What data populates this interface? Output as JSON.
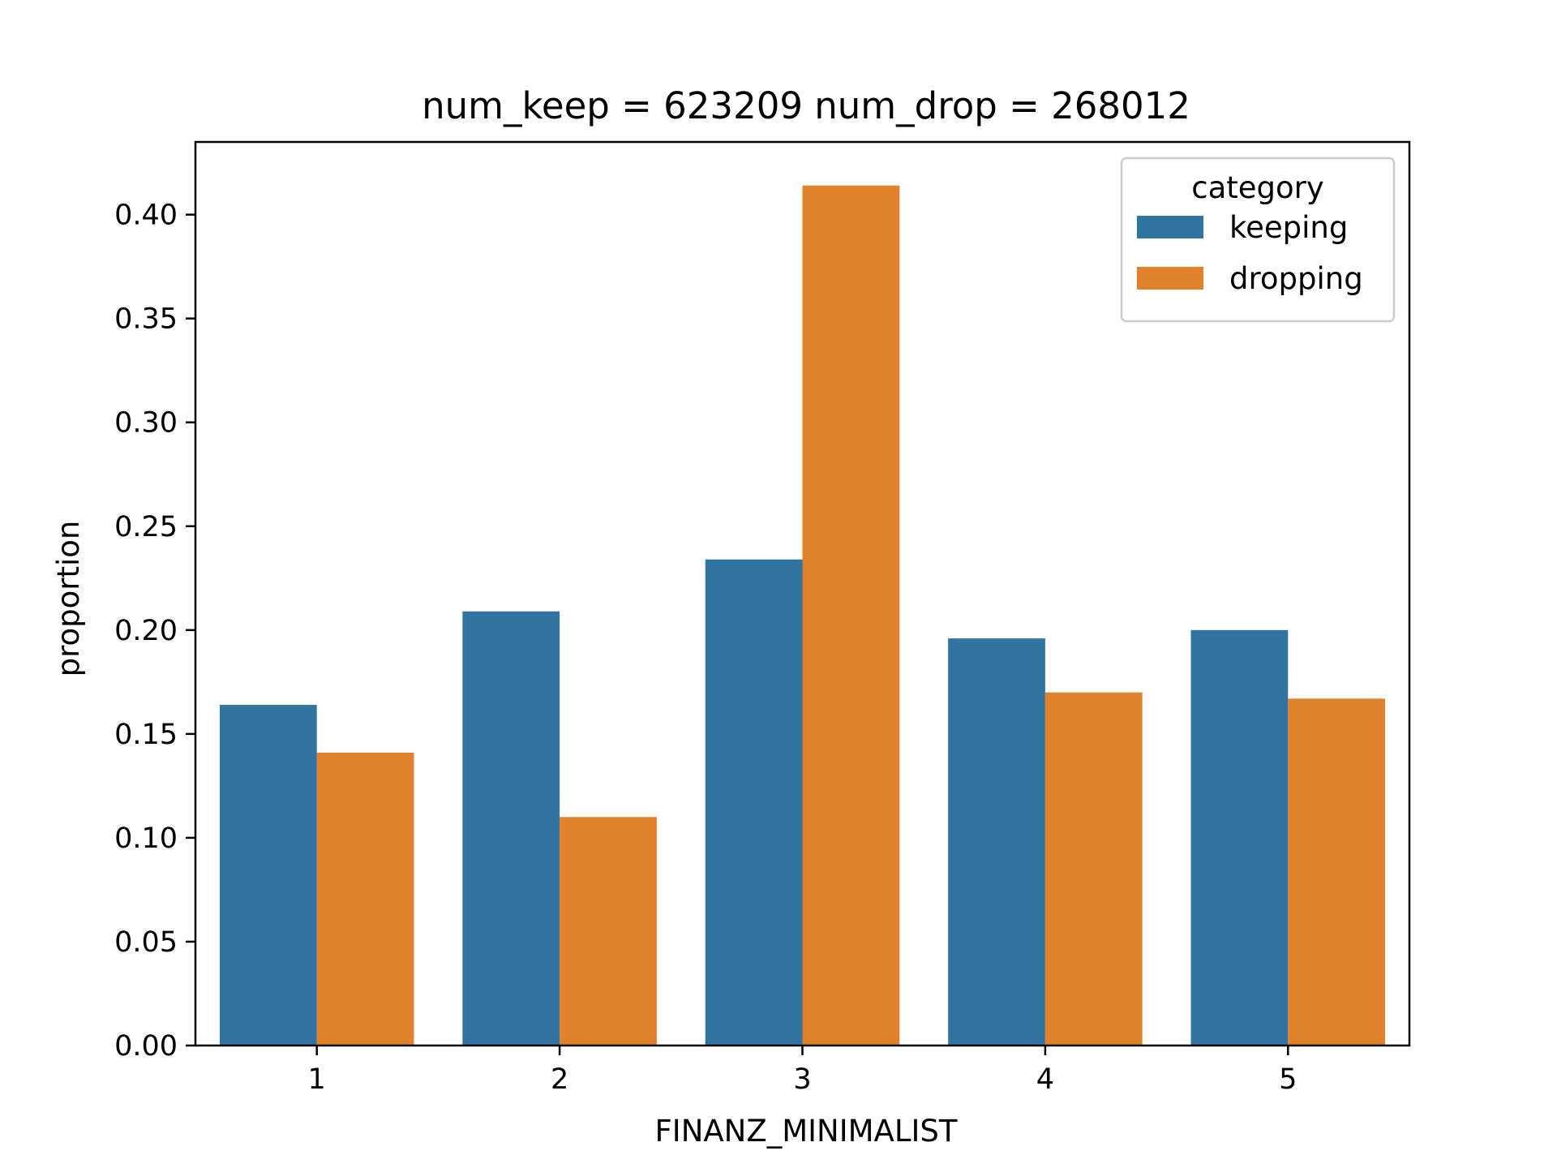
{
  "chart_data": {
    "type": "bar",
    "title": "num_keep = 623209  num_drop = 268012",
    "xlabel": "FINANZ_MINIMALIST",
    "ylabel": "proportion",
    "categories": [
      "1",
      "2",
      "3",
      "4",
      "5"
    ],
    "series": [
      {
        "name": "keeping",
        "color": "#3274a1",
        "values": [
          0.164,
          0.209,
          0.234,
          0.196,
          0.2
        ]
      },
      {
        "name": "dropping",
        "color": "#e1812c",
        "values": [
          0.141,
          0.11,
          0.414,
          0.17,
          0.167
        ]
      }
    ],
    "ylim": [
      0,
      0.435
    ],
    "yticks": [
      0.0,
      0.05,
      0.1,
      0.15,
      0.2,
      0.25,
      0.3,
      0.35,
      0.4
    ],
    "ytick_labels": [
      "0.00",
      "0.05",
      "0.10",
      "0.15",
      "0.20",
      "0.25",
      "0.30",
      "0.35",
      "0.40"
    ],
    "grid": false,
    "legend": {
      "title": "category",
      "placement": "top-right"
    }
  }
}
